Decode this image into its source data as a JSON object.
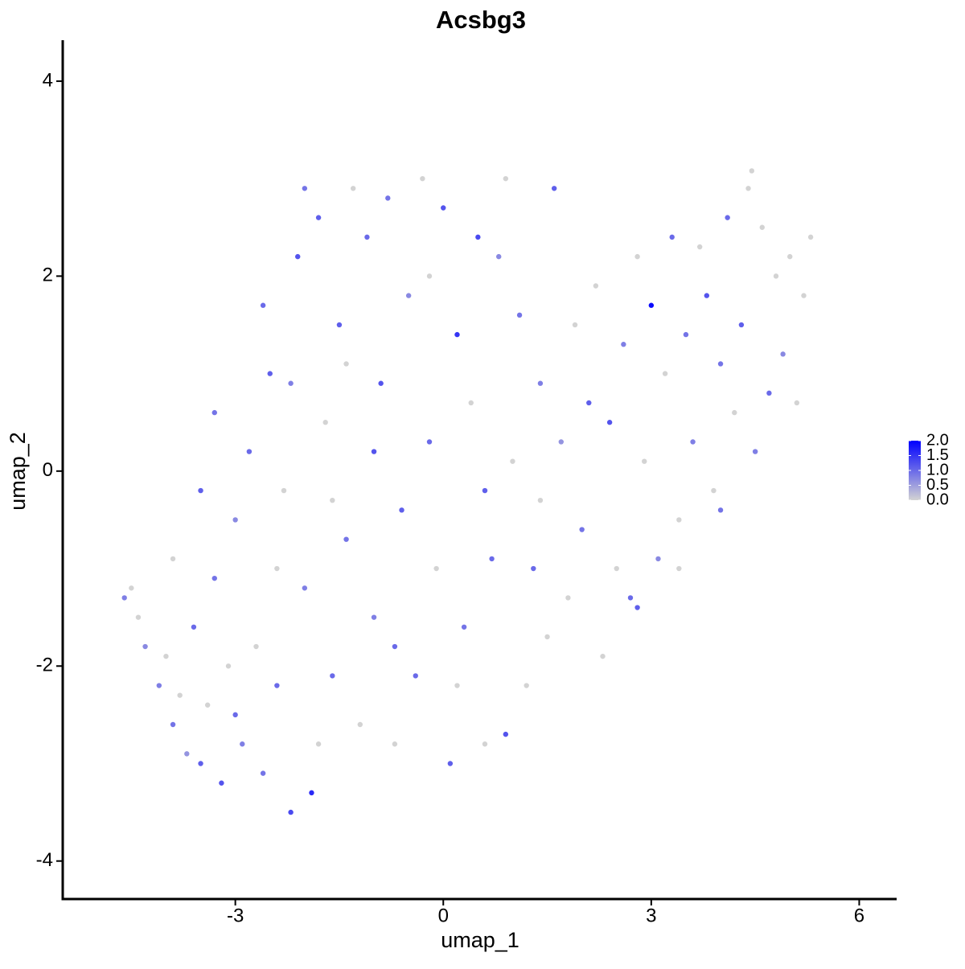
{
  "chart_data": {
    "type": "scatter",
    "title": "Acsbg3",
    "x_label": "umap_1",
    "y_label": "umap_2",
    "xlim": [
      -5.49,
      6.54
    ],
    "ylim": [
      -4.39,
      4.42
    ],
    "xticks": [
      -3,
      0,
      3,
      6
    ],
    "yticks": [
      -4,
      -2,
      0,
      2,
      4
    ],
    "color_scale": {
      "low": "#d3d3d3",
      "high": "#0000ff",
      "lim": [
        0,
        2
      ],
      "ticks": [
        {
          "value": 2,
          "label": "2.0"
        },
        {
          "value": 1.5,
          "label": "1.5"
        },
        {
          "value": 1,
          "label": "1.0"
        },
        {
          "value": 0.5,
          "label": "0.5"
        },
        {
          "value": 0,
          "label": "0.0"
        }
      ]
    },
    "x": [
      -4.6,
      -4.5,
      -4.4,
      -4.3,
      -4.1,
      -4.0,
      -3.9,
      -3.8,
      -3.7,
      -3.6,
      -3.5,
      -3.4,
      -3.3,
      -3.2,
      -3.1,
      -3.0,
      -2.9,
      -2.8,
      -2.7,
      -2.6,
      -2.5,
      -2.4,
      -2.3,
      -2.2,
      -2.1,
      -2.0,
      -1.9,
      -1.8,
      -1.7,
      -1.6,
      -1.5,
      -1.4,
      -1.3,
      -1.2,
      -1.1,
      -1.0,
      -0.9,
      -0.8,
      -0.7,
      -0.6,
      -0.5,
      -0.4,
      -0.3,
      -0.2,
      -0.1,
      0.0,
      0.1,
      0.2,
      0.3,
      0.4,
      0.5,
      0.6,
      0.7,
      0.8,
      0.9,
      1.0,
      1.1,
      1.2,
      1.3,
      1.4,
      1.5,
      1.6,
      1.7,
      1.8,
      1.9,
      2.0,
      2.1,
      2.2,
      2.3,
      2.4,
      2.5,
      2.6,
      2.7,
      2.8,
      2.9,
      3.0,
      3.1,
      3.2,
      3.3,
      3.4,
      3.5,
      3.6,
      3.7,
      3.8,
      3.9,
      4.0,
      4.1,
      4.2,
      4.3,
      4.4,
      4.5,
      4.6,
      4.7,
      4.8,
      4.9,
      5.0,
      5.1,
      5.2,
      5.3,
      4.45,
      -2.0,
      -2.6,
      -3.3,
      -3.9,
      -3.5,
      -1.6,
      -0.7,
      0.2,
      -1.0,
      -2.4,
      -3.0,
      -1.8,
      0.6,
      1.4,
      -0.2,
      -2.2,
      0.9,
      -1.4,
      3.4,
      2.8,
      4.0
    ],
    "y": [
      -1.3,
      -1.2,
      -1.5,
      -1.8,
      -2.2,
      -1.9,
      -2.6,
      -2.3,
      -2.9,
      -1.6,
      -3.0,
      -2.4,
      -1.1,
      -3.2,
      -2.0,
      -0.5,
      -2.8,
      0.2,
      -1.8,
      -3.1,
      1.0,
      -2.2,
      -0.2,
      -3.5,
      2.2,
      -1.2,
      -3.3,
      2.6,
      0.5,
      -2.1,
      1.5,
      -0.7,
      2.9,
      -2.6,
      2.4,
      -1.5,
      0.9,
      2.8,
      -2.8,
      -0.4,
      1.8,
      -2.1,
      3.0,
      0.3,
      -1.0,
      2.7,
      -3.0,
      1.4,
      -1.6,
      0.7,
      2.4,
      -2.8,
      -0.9,
      2.2,
      -2.7,
      0.1,
      1.6,
      -2.2,
      -1.0,
      0.9,
      -1.7,
      2.9,
      0.3,
      -1.3,
      1.5,
      -0.6,
      0.7,
      1.9,
      -1.9,
      0.5,
      -1.0,
      1.3,
      -1.3,
      2.2,
      0.1,
      1.7,
      -0.9,
      1.0,
      2.4,
      -0.5,
      1.4,
      0.3,
      2.3,
      1.8,
      -0.2,
      1.1,
      2.6,
      0.6,
      1.5,
      2.9,
      0.2,
      2.5,
      0.8,
      2.0,
      1.2,
      2.2,
      0.7,
      1.8,
      2.4,
      3.08,
      2.9,
      1.7,
      0.6,
      -0.9,
      -0.2,
      -0.3,
      -1.8,
      -2.2,
      0.2,
      -1.0,
      -2.5,
      -2.8,
      -0.2,
      -0.3,
      2.0,
      0.9,
      3.0,
      1.1,
      -1.0,
      -1.4,
      -0.4
    ],
    "values": [
      0.8,
      0,
      0,
      0.7,
      0.8,
      0,
      0.9,
      0,
      0.6,
      1.0,
      1.1,
      0,
      0.9,
      1.2,
      0,
      0.7,
      0.8,
      1.0,
      0,
      0.9,
      1.1,
      1.0,
      0,
      1.3,
      1.2,
      0.8,
      1.6,
      1.1,
      0,
      1.0,
      1.1,
      0.9,
      0,
      0,
      1.0,
      0.8,
      1.2,
      0.9,
      0,
      1.1,
      0.7,
      1.0,
      0,
      1.0,
      0,
      1.2,
      1.1,
      1.5,
      0.9,
      0,
      1.3,
      0,
      1.0,
      0.7,
      1.2,
      0,
      0.9,
      0,
      1.0,
      0.8,
      0,
      1.1,
      0.6,
      0,
      0,
      0.9,
      1.1,
      0,
      0,
      1.2,
      0,
      0.8,
      1.0,
      0,
      0,
      1.9,
      0.7,
      0,
      1.0,
      0,
      0.9,
      0.8,
      0,
      1.2,
      0,
      0.9,
      1.0,
      0,
      1.1,
      0,
      0.8,
      0,
      1.0,
      0,
      0.7,
      0,
      0,
      0,
      0,
      0,
      0.9,
      1.0,
      0.9,
      0,
      1.1,
      0,
      1.0,
      0,
      1.2,
      0,
      1.0,
      0,
      1.1,
      0,
      0,
      0.8,
      0,
      0,
      0,
      1.1,
      0.9
    ]
  }
}
